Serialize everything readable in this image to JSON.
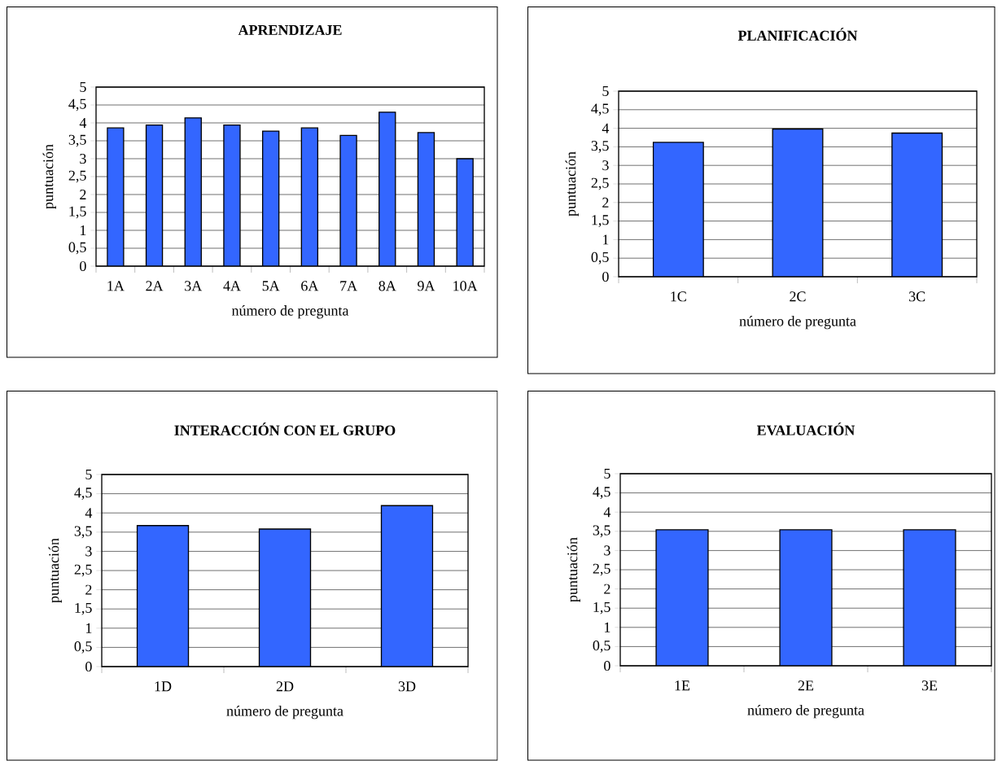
{
  "chart_data": [
    {
      "type": "bar",
      "title": "APRENDIZAJE",
      "xlabel": "número de pregunta",
      "ylabel": "puntuación",
      "categories": [
        "1A",
        "2A",
        "3A",
        "4A",
        "5A",
        "6A",
        "7A",
        "8A",
        "9A",
        "10A"
      ],
      "values": [
        3.86,
        3.94,
        4.14,
        3.94,
        3.77,
        3.86,
        3.65,
        4.3,
        3.73,
        3.0
      ],
      "color": "#3366ff",
      "ylim": [
        0,
        5
      ],
      "yticks": [
        0,
        {
          "value": 0.5,
          "label": "0,5"
        },
        1,
        {
          "value": 1.5,
          "label": "1,5"
        },
        2,
        {
          "value": 2.5,
          "label": "2,5"
        },
        3,
        {
          "value": 3.5,
          "label": "3,5"
        },
        4,
        {
          "value": 4.5,
          "label": "4,5"
        },
        5
      ],
      "grid": "y"
    },
    {
      "type": "bar",
      "title": "PLANIFICACIÓN",
      "xlabel": "número de pregunta",
      "ylabel": "puntuación",
      "categories": [
        "1C",
        "2C",
        "3C"
      ],
      "values": [
        3.62,
        3.98,
        3.87
      ],
      "color": "#3366ff",
      "ylim": [
        0,
        5
      ],
      "yticks": [
        0,
        {
          "value": 0.5,
          "label": "0,5"
        },
        1,
        {
          "value": 1.5,
          "label": "1,5"
        },
        2,
        {
          "value": 2.5,
          "label": "2,5"
        },
        3,
        {
          "value": 3.5,
          "label": "3,5"
        },
        4,
        {
          "value": 4.5,
          "label": "4,5"
        },
        5
      ],
      "grid": "y"
    },
    {
      "type": "bar",
      "title": "INTERACCIÓN CON EL GRUPO",
      "xlabel": "número de pregunta",
      "ylabel": "puntuación",
      "categories": [
        "1D",
        "2D",
        "3D"
      ],
      "values": [
        3.67,
        3.58,
        4.19
      ],
      "color": "#3366ff",
      "ylim": [
        0,
        5
      ],
      "yticks": [
        0,
        {
          "value": 0.5,
          "label": "0,5"
        },
        1,
        {
          "value": 1.5,
          "label": "1,5"
        },
        2,
        {
          "value": 2.5,
          "label": "2,5"
        },
        3,
        {
          "value": 3.5,
          "label": "3,5"
        },
        4,
        {
          "value": 4.5,
          "label": "4,5"
        },
        5
      ],
      "grid": "y"
    },
    {
      "type": "bar",
      "title": "EVALUACIÓN",
      "xlabel": "número de pregunta",
      "ylabel": "puntuación",
      "categories": [
        "1E",
        "2E",
        "3E"
      ],
      "values": [
        3.54,
        3.54,
        3.54
      ],
      "color": "#3366ff",
      "ylim": [
        0,
        5
      ],
      "yticks": [
        0,
        {
          "value": 0.5,
          "label": "0,5"
        },
        1,
        {
          "value": 1.5,
          "label": "1,5"
        },
        2,
        {
          "value": 2.5,
          "label": "2,5"
        },
        3,
        {
          "value": 3.5,
          "label": "3,5"
        },
        4,
        {
          "value": 4.5,
          "label": "4,5"
        },
        5
      ],
      "grid": "y"
    }
  ]
}
